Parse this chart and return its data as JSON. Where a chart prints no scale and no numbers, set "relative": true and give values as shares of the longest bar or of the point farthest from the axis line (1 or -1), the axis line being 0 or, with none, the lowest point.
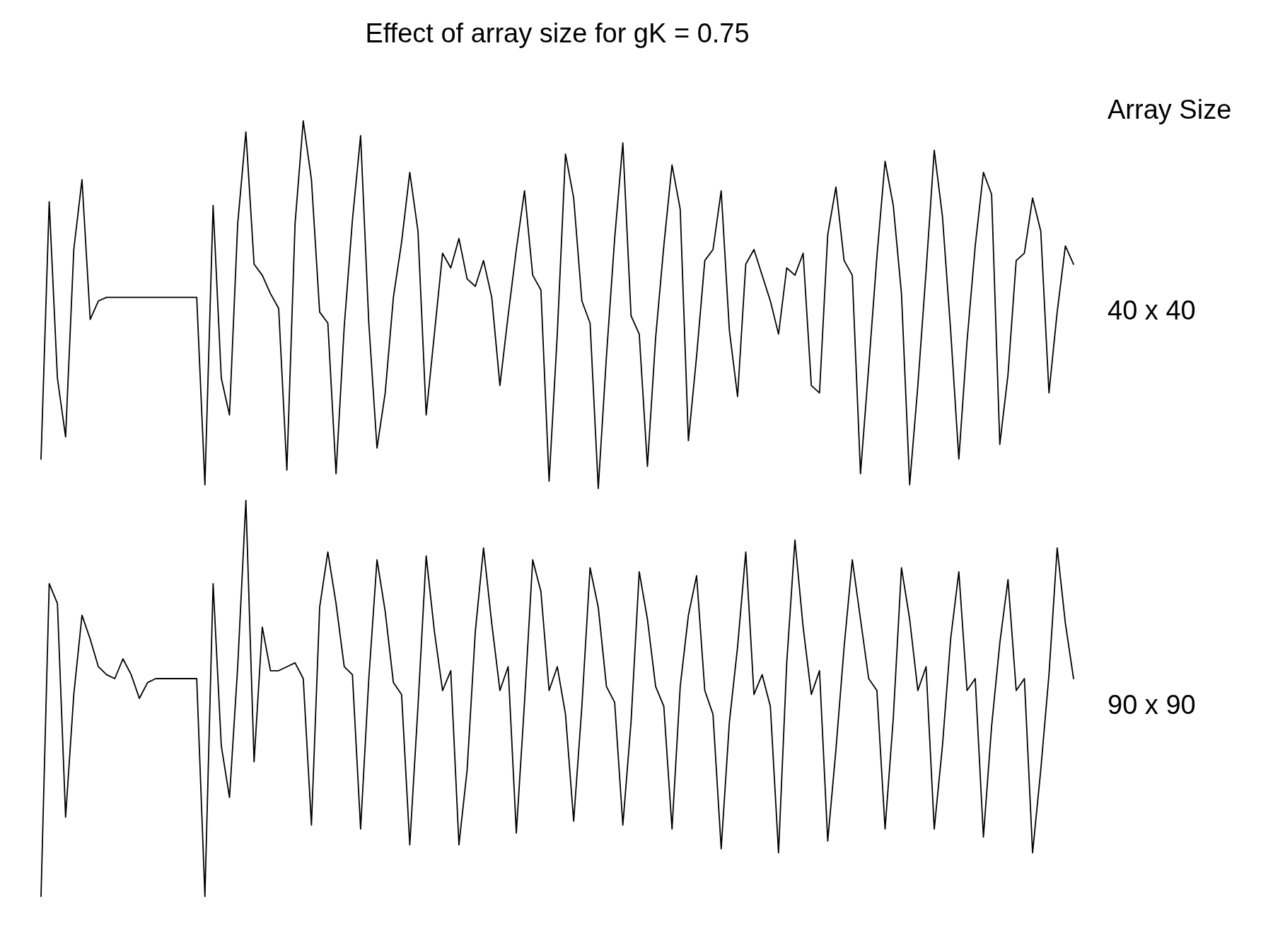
{
  "chart_data": [
    {
      "type": "line",
      "title": "Effect of array size for gK = 0.75",
      "legend_title": "Array Size",
      "relative": true,
      "tick_labels": false,
      "categories": [
        null,
        null,
        null,
        null,
        null,
        null,
        null,
        null,
        null,
        null,
        null,
        null,
        null,
        null,
        null,
        null,
        null,
        null,
        null,
        null,
        null,
        null,
        null,
        null,
        null,
        null,
        null,
        null,
        null,
        null,
        null,
        null,
        null,
        null,
        null,
        null,
        null,
        null,
        null,
        null,
        null,
        null,
        null,
        null,
        null,
        null,
        null,
        null,
        null,
        null,
        null,
        null,
        null,
        null,
        null,
        null,
        null,
        null,
        null,
        null,
        null,
        null,
        null,
        null,
        null,
        null,
        null,
        null,
        null,
        null,
        null,
        null,
        null,
        null,
        null,
        null,
        null,
        null,
        null,
        null,
        null,
        null,
        null,
        null,
        null,
        null,
        null,
        null,
        null,
        null,
        null,
        null,
        null,
        null,
        null,
        null,
        null,
        null,
        null,
        null,
        null,
        null,
        null,
        null,
        null,
        null,
        null,
        null,
        null,
        null,
        null,
        null,
        null,
        null,
        null,
        null,
        null,
        null,
        null,
        null,
        null,
        null,
        null,
        null,
        null,
        null,
        null
      ],
      "series": [
        {
          "name": "40 x 40",
          "color": "#000000",
          "values": [
            0.08,
            0.78,
            0.3,
            0.14,
            0.65,
            0.84,
            0.46,
            0.51,
            0.52,
            0.52,
            0.52,
            0.52,
            0.52,
            0.52,
            0.52,
            0.52,
            0.52,
            0.52,
            0.52,
            0.52,
            0.01,
            0.77,
            0.3,
            0.2,
            0.72,
            0.97,
            0.61,
            0.58,
            0.53,
            0.49,
            0.05,
            0.72,
            1.0,
            0.84,
            0.48,
            0.45,
            0.04,
            0.44,
            0.73,
            0.96,
            0.45,
            0.11,
            0.26,
            0.52,
            0.67,
            0.86,
            0.7,
            0.2,
            0.42,
            0.64,
            0.6,
            0.68,
            0.57,
            0.55,
            0.62,
            0.52,
            0.28,
            0.47,
            0.65,
            0.81,
            0.58,
            0.54,
            0.02,
            0.42,
            0.91,
            0.79,
            0.51,
            0.45,
            0.0,
            0.36,
            0.68,
            0.94,
            0.47,
            0.42,
            0.06,
            0.41,
            0.66,
            0.88,
            0.76,
            0.13,
            0.36,
            0.62,
            0.65,
            0.81,
            0.43,
            0.25,
            0.61,
            0.65,
            0.58,
            0.51,
            0.42,
            0.6,
            0.58,
            0.64,
            0.28,
            0.26,
            0.69,
            0.82,
            0.62,
            0.58,
            0.04,
            0.33,
            0.63,
            0.89,
            0.77,
            0.53,
            0.01,
            0.28,
            0.59,
            0.92,
            0.74,
            0.43,
            0.08,
            0.4,
            0.66,
            0.86,
            0.8,
            0.12,
            0.31,
            0.62,
            0.64,
            0.79,
            0.7,
            0.26,
            0.48,
            0.66,
            0.61
          ]
        }
      ]
    },
    {
      "type": "line",
      "relative": true,
      "tick_labels": false,
      "categories": [
        null,
        null,
        null,
        null,
        null,
        null,
        null,
        null,
        null,
        null,
        null,
        null,
        null,
        null,
        null,
        null,
        null,
        null,
        null,
        null,
        null,
        null,
        null,
        null,
        null,
        null,
        null,
        null,
        null,
        null,
        null,
        null,
        null,
        null,
        null,
        null,
        null,
        null,
        null,
        null,
        null,
        null,
        null,
        null,
        null,
        null,
        null,
        null,
        null,
        null,
        null,
        null,
        null,
        null,
        null,
        null,
        null,
        null,
        null,
        null,
        null,
        null,
        null,
        null,
        null,
        null,
        null,
        null,
        null,
        null,
        null,
        null,
        null,
        null,
        null,
        null,
        null,
        null,
        null,
        null,
        null,
        null,
        null,
        null,
        null,
        null,
        null,
        null,
        null,
        null,
        null,
        null,
        null,
        null,
        null,
        null,
        null,
        null,
        null,
        null,
        null,
        null,
        null,
        null,
        null,
        null,
        null,
        null,
        null,
        null,
        null,
        null,
        null,
        null,
        null,
        null,
        null,
        null,
        null,
        null,
        null,
        null,
        null,
        null,
        null,
        null,
        null
      ],
      "series": [
        {
          "name": "90 x 90",
          "color": "#000000",
          "values": [
            0.0,
            0.79,
            0.74,
            0.2,
            0.51,
            0.71,
            0.65,
            0.58,
            0.56,
            0.55,
            0.6,
            0.56,
            0.5,
            0.54,
            0.55,
            0.55,
            0.55,
            0.55,
            0.55,
            0.55,
            0.0,
            0.79,
            0.38,
            0.25,
            0.58,
            1.0,
            0.34,
            0.68,
            0.57,
            0.57,
            0.58,
            0.59,
            0.55,
            0.18,
            0.73,
            0.87,
            0.74,
            0.58,
            0.56,
            0.17,
            0.55,
            0.85,
            0.72,
            0.54,
            0.51,
            0.13,
            0.48,
            0.86,
            0.67,
            0.52,
            0.57,
            0.13,
            0.32,
            0.67,
            0.88,
            0.69,
            0.52,
            0.58,
            0.16,
            0.49,
            0.85,
            0.77,
            0.52,
            0.58,
            0.46,
            0.19,
            0.48,
            0.83,
            0.73,
            0.53,
            0.49,
            0.18,
            0.44,
            0.82,
            0.7,
            0.53,
            0.48,
            0.17,
            0.53,
            0.71,
            0.81,
            0.52,
            0.46,
            0.12,
            0.44,
            0.63,
            0.87,
            0.51,
            0.56,
            0.48,
            0.11,
            0.59,
            0.9,
            0.68,
            0.51,
            0.57,
            0.14,
            0.37,
            0.63,
            0.85,
            0.7,
            0.55,
            0.52,
            0.17,
            0.45,
            0.83,
            0.7,
            0.52,
            0.58,
            0.17,
            0.38,
            0.65,
            0.82,
            0.52,
            0.55,
            0.15,
            0.43,
            0.64,
            0.8,
            0.52,
            0.55,
            0.11,
            0.32,
            0.56,
            0.88,
            0.69,
            0.55
          ]
        }
      ]
    }
  ]
}
